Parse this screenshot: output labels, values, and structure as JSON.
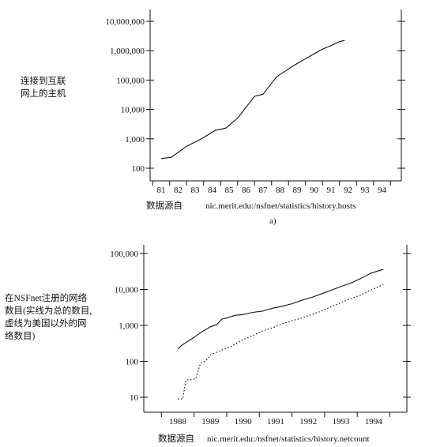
{
  "chart_data": [
    {
      "type": "line",
      "ylabel_lines": [
        "连接到互联",
        "网上的主机"
      ],
      "x_ticks": [
        "81",
        "82",
        "83",
        "84",
        "85",
        "86",
        "87",
        "88",
        "89",
        "90",
        "91",
        "92",
        "93",
        "94"
      ],
      "y_ticks": [
        "10,000,000",
        "1,000,000",
        "100,000",
        "10,000",
        "1,000",
        "100"
      ],
      "y_scale": "log",
      "ylim": [
        100,
        10000000
      ],
      "source_prefix": "数据源自",
      "source_url": "nic.merit.edu:/nsfnet/statistics/history.hosts",
      "caption": "a)",
      "series": [
        {
          "style": "solid",
          "points": [
            [
              81,
              213
            ],
            [
              81.6,
              235
            ],
            [
              82.5,
              562
            ],
            [
              83.4,
              1024
            ],
            [
              84.2,
              1961
            ],
            [
              84.8,
              2308
            ],
            [
              85.5,
              5089
            ],
            [
              86.5,
              28174
            ],
            [
              87,
              33000
            ],
            [
              87.3,
              56000
            ],
            [
              87.8,
              130000
            ],
            [
              88.3,
              200000
            ],
            [
              88.8,
              313000
            ],
            [
              89.5,
              535000
            ],
            [
              89.9,
              727000
            ],
            [
              90.5,
              1136000
            ],
            [
              91,
              1486000
            ],
            [
              91.5,
              2056000
            ],
            [
              91.8,
              2217000
            ]
          ]
        }
      ]
    },
    {
      "type": "line",
      "ylabel_lines": [
        "在NSFnet注册的网络",
        "数目(实线为总的数目,",
        "虚线为美国以外的网",
        "络数目)"
      ],
      "x_ticks": [
        "1988",
        "1989",
        "1990",
        "1991",
        "1992",
        "1993",
        "1994"
      ],
      "y_ticks": [
        "100,000",
        "10,000",
        "1,000",
        "100",
        "10"
      ],
      "y_scale": "log",
      "ylim": [
        10,
        100000
      ],
      "source_prefix": "数据源自",
      "source_url": "nic.merit.edu:/nsfnet/statistics/history.netcount",
      "series": [
        {
          "style": "solid",
          "points": [
            [
              1988.0,
              217
            ],
            [
              1988.1,
              270
            ],
            [
              1988.25,
              334
            ],
            [
              1988.5,
              465
            ],
            [
              1988.75,
              673
            ],
            [
              1989.0,
              913
            ],
            [
              1989.2,
              1060
            ],
            [
              1989.35,
              1500
            ],
            [
              1989.5,
              1600
            ],
            [
              1989.75,
              1900
            ],
            [
              1990.0,
              2000
            ],
            [
              1990.3,
              2300
            ],
            [
              1990.6,
              2500
            ],
            [
              1990.9,
              3000
            ],
            [
              1991.2,
              3400
            ],
            [
              1991.5,
              4000
            ],
            [
              1991.8,
              5000
            ],
            [
              1992.1,
              6000
            ],
            [
              1992.4,
              7500
            ],
            [
              1992.7,
              9500
            ],
            [
              1993.0,
              12000
            ],
            [
              1993.3,
              15000
            ],
            [
              1993.6,
              20000
            ],
            [
              1993.9,
              28000
            ],
            [
              1994.2,
              34000
            ],
            [
              1994.3,
              36000
            ]
          ]
        },
        {
          "style": "dotted",
          "points": [
            [
              1988.0,
              9
            ],
            [
              1988.15,
              9
            ],
            [
              1988.25,
              30
            ],
            [
              1988.4,
              31
            ],
            [
              1988.55,
              33
            ],
            [
              1988.7,
              90
            ],
            [
              1988.85,
              100
            ],
            [
              1989.0,
              150
            ],
            [
              1989.3,
              200
            ],
            [
              1989.6,
              250
            ],
            [
              1990.0,
              400
            ],
            [
              1990.3,
              520
            ],
            [
              1990.6,
              700
            ],
            [
              1990.9,
              850
            ],
            [
              1991.2,
              1100
            ],
            [
              1991.5,
              1350
            ],
            [
              1991.8,
              1600
            ],
            [
              1992.1,
              2000
            ],
            [
              1992.4,
              2500
            ],
            [
              1992.7,
              3300
            ],
            [
              1993.0,
              4300
            ],
            [
              1993.3,
              5500
            ],
            [
              1993.6,
              7000
            ],
            [
              1993.9,
              9500
            ],
            [
              1994.2,
              12500
            ],
            [
              1994.3,
              14000
            ]
          ]
        }
      ]
    }
  ]
}
